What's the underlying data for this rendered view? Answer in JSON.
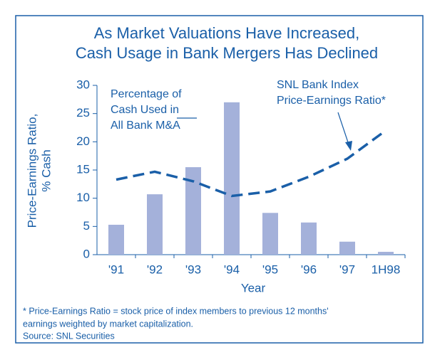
{
  "chart_data": {
    "type": "bar",
    "title": [
      "As Market Valuations Have Increased,",
      "Cash Usage in Bank Mergers Has Declined"
    ],
    "y_label": [
      "Price-Earnings Ratio,",
      "% Cash"
    ],
    "x_label": "Year",
    "categories": [
      "'91",
      "'92",
      "'93",
      "'94",
      "'95",
      "'96",
      "'97",
      "1H98"
    ],
    "series": [
      {
        "type": "bar",
        "label": [
          "Percentage of",
          "Cash Used in",
          "All Bank M&A"
        ],
        "color": "#a4b1da",
        "values": [
          5.3,
          10.7,
          15.5,
          27,
          7.4,
          5.7,
          2.3,
          0.5
        ]
      },
      {
        "type": "line",
        "label": [
          "SNL Bank Index",
          "Price-Earnings Ratio*"
        ],
        "color": "#1a5fa8",
        "values": [
          13.3,
          14.7,
          13,
          10.4,
          11.2,
          13.8,
          17,
          22
        ]
      }
    ],
    "ylim": [
      0,
      30
    ],
    "yticks": [
      0,
      5,
      10,
      15,
      20,
      25,
      30
    ],
    "footnote": [
      "* Price-Earnings Ratio = stock price of index members to previous 12 months'",
      "earnings weighted by market capitalization."
    ],
    "source": "Source: SNL Securities"
  }
}
